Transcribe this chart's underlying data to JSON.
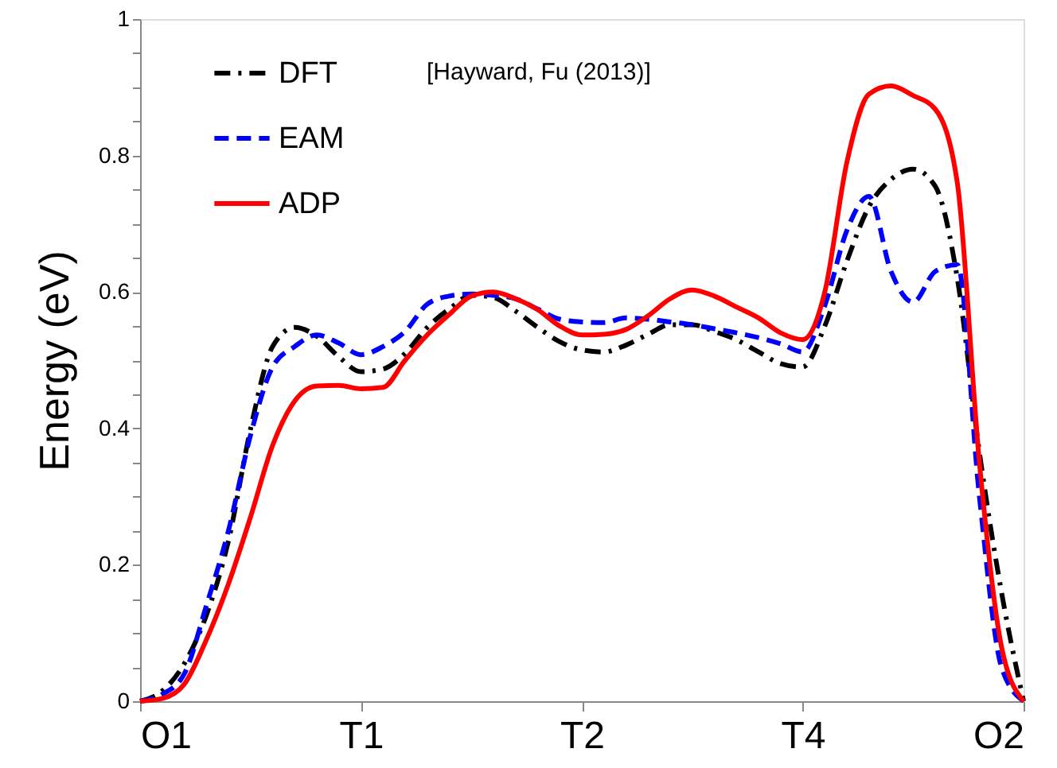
{
  "chart_data": {
    "type": "line",
    "ylabel": "Energy (eV)",
    "annotations": [
      "[Hayward, Fu (2013)]"
    ],
    "categories": [
      "O1",
      null,
      null,
      null,
      null,
      null,
      null,
      null,
      null,
      null,
      "T1",
      null,
      null,
      null,
      null,
      null,
      null,
      null,
      null,
      null,
      "T2",
      null,
      null,
      null,
      null,
      null,
      null,
      null,
      null,
      null,
      "T4",
      null,
      null,
      null,
      null,
      null,
      null,
      null,
      null,
      null,
      "O2"
    ],
    "ylim": [
      0,
      1
    ],
    "yticks": [
      0,
      {
        "value": 0.05,
        "label": null
      },
      {
        "value": 0.1,
        "label": null
      },
      {
        "value": 0.15,
        "label": null
      },
      0.2,
      {
        "value": 0.25,
        "label": null
      },
      {
        "value": 0.3,
        "label": null
      },
      {
        "value": 0.35,
        "label": null
      },
      0.4,
      {
        "value": 0.45,
        "label": null
      },
      {
        "value": 0.5,
        "label": null
      },
      {
        "value": 0.55,
        "label": null
      },
      0.6,
      {
        "value": 0.65,
        "label": null
      },
      {
        "value": 0.7,
        "label": null
      },
      {
        "value": 0.75,
        "label": null
      },
      0.8,
      {
        "value": 0.85,
        "label": null
      },
      {
        "value": 0.9,
        "label": null
      },
      {
        "value": 0.95,
        "label": null
      },
      1
    ],
    "grid": false,
    "legend": "top left",
    "series": [
      {
        "name": "DFT",
        "color": "#000000",
        "line_style": "dashdot",
        "values": [
          0,
          0.015,
          0.055,
          0.126,
          0.235,
          0.399,
          0.52,
          0.548,
          0.535,
          0.505,
          0.483,
          0.487,
          0.51,
          0.548,
          0.575,
          0.595,
          0.592,
          0.572,
          0.548,
          0.527,
          0.515,
          0.512,
          0.522,
          0.538,
          0.552,
          0.552,
          0.542,
          0.53,
          0.512,
          0.495,
          0.49,
          0.55,
          0.645,
          0.725,
          0.765,
          0.78,
          0.755,
          0.62,
          0.365,
          0.16,
          0
        ]
      },
      {
        "name": "EAM",
        "color": "#0000ff",
        "line_style": "dashed",
        "values": [
          0,
          0.01,
          0.04,
          0.14,
          0.25,
          0.39,
          0.49,
          0.52,
          0.537,
          0.525,
          0.508,
          0.52,
          0.542,
          0.582,
          0.594,
          0.597,
          0.595,
          0.59,
          0.575,
          0.56,
          0.556,
          0.555,
          0.562,
          0.56,
          0.556,
          0.552,
          0.546,
          0.54,
          0.533,
          0.524,
          0.512,
          0.58,
          0.69,
          0.74,
          0.63,
          0.585,
          0.63,
          0.64,
          0.3,
          0.05,
          0
        ]
      },
      {
        "name": "ADP",
        "color": "#ff0000",
        "line_style": "solid",
        "values": [
          0,
          0.004,
          0.025,
          0.09,
          0.172,
          0.27,
          0.375,
          0.44,
          0.462,
          0.463,
          0.458,
          0.46,
          0.5,
          0.537,
          0.567,
          0.594,
          0.6,
          0.59,
          0.574,
          0.55,
          0.537,
          0.538,
          0.545,
          0.565,
          0.59,
          0.603,
          0.594,
          0.578,
          0.562,
          0.54,
          0.53,
          0.6,
          0.79,
          0.89,
          0.902,
          0.888,
          0.868,
          0.76,
          0.35,
          0.08,
          0
        ]
      }
    ]
  }
}
